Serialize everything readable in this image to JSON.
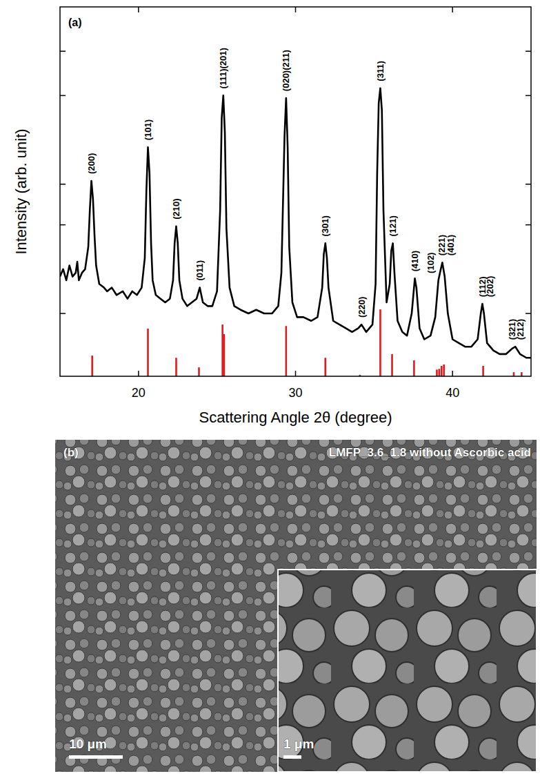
{
  "chart_data": {
    "type": "line",
    "panel_label": "(a)",
    "xlabel": "Scattering Angle 2θ (degree)",
    "ylabel": "Intensity (arb. unit)",
    "xlim": [
      15,
      45
    ],
    "ylim": [
      0,
      100
    ],
    "xticks": [
      20,
      30,
      40
    ],
    "yticks": [
      17,
      41,
      52,
      76,
      88
    ],
    "tick_labels": "x",
    "series": [
      {
        "type": "line",
        "color": "#000000",
        "x": [
          15.0,
          15.2,
          15.4,
          15.6,
          15.8,
          16.0,
          16.1,
          16.2,
          16.4,
          16.6,
          16.8,
          16.9,
          17.0,
          17.1,
          17.2,
          17.3,
          17.5,
          17.8,
          18.0,
          18.3,
          18.6,
          19.0,
          19.3,
          19.6,
          19.9,
          20.2,
          20.4,
          20.5,
          20.6,
          20.7,
          20.8,
          20.9,
          21.1,
          21.4,
          21.7,
          22.0,
          22.2,
          22.3,
          22.4,
          22.5,
          22.6,
          22.8,
          23.1,
          23.4,
          23.7,
          23.9,
          24.1,
          24.4,
          24.7,
          25.0,
          25.2,
          25.3,
          25.4,
          25.5,
          25.6,
          25.8,
          26.1,
          26.5,
          27.0,
          27.5,
          28.0,
          28.5,
          28.9,
          29.1,
          29.3,
          29.4,
          29.5,
          29.6,
          29.8,
          30.1,
          30.5,
          31.0,
          31.4,
          31.7,
          31.8,
          31.9,
          32.0,
          32.1,
          32.4,
          32.8,
          33.2,
          33.6,
          34.0,
          34.2,
          34.5,
          34.9,
          35.1,
          35.2,
          35.3,
          35.4,
          35.5,
          35.6,
          35.8,
          36.0,
          36.1,
          36.2,
          36.3,
          36.5,
          36.8,
          37.1,
          37.4,
          37.6,
          37.7,
          37.9,
          38.2,
          38.6,
          38.9,
          39.1,
          39.2,
          39.35,
          39.5,
          39.7,
          40.0,
          40.4,
          40.8,
          41.2,
          41.6,
          41.8,
          41.9,
          42.0,
          42.2,
          42.6,
          43.0,
          43.4,
          43.8,
          44.0,
          44.3,
          44.7,
          45.0
        ],
        "values": [
          27,
          29,
          26,
          30,
          27,
          28,
          31,
          26,
          28,
          29,
          35,
          45,
          52.9,
          48,
          38,
          30,
          25,
          24,
          23,
          24,
          22,
          23,
          21,
          23,
          22,
          24,
          32,
          50,
          62,
          55,
          36,
          26,
          22,
          21,
          20,
          21,
          26,
          36,
          40.6,
          36,
          26,
          21,
          19,
          20,
          21,
          24,
          20,
          19,
          19,
          23,
          45,
          70,
          76,
          66,
          40,
          24,
          19,
          18,
          17,
          18,
          17,
          17,
          19,
          28,
          65,
          75.3,
          62,
          35,
          20,
          16,
          16,
          15,
          16,
          24,
          33,
          36,
          32,
          24,
          15,
          14,
          13,
          12,
          13,
          14,
          12,
          14,
          25,
          55,
          74,
          78,
          72,
          45,
          20,
          25,
          34,
          36,
          28,
          15,
          12,
          11,
          17,
          26.5,
          24,
          13,
          10,
          11,
          16,
          26,
          28,
          30.8,
          27,
          17,
          10,
          9,
          8,
          8,
          10,
          17,
          19.6,
          17,
          9,
          7,
          6,
          6,
          7.5,
          8,
          6,
          5,
          5
        ]
      },
      {
        "type": "bar",
        "color": "#e31a1c",
        "x": [
          17.05,
          20.6,
          22.4,
          23.85,
          25.35,
          25.45,
          29.4,
          31.9,
          34.1,
          35.4,
          36.15,
          37.55,
          39.0,
          39.15,
          39.3,
          39.45,
          41.95,
          43.9,
          44.4
        ],
        "values": [
          5.6,
          12.9,
          5,
          2.4,
          14,
          11.4,
          13.6,
          5,
          0.4,
          18.1,
          6,
          4.3,
          1.8,
          2,
          2.8,
          3.2,
          2.8,
          1.1,
          1.1
        ]
      }
    ],
    "annotations": [
      {
        "text": "(200)",
        "x": 17.0
      },
      {
        "text": "(101)",
        "x": 20.6
      },
      {
        "text": "(210)",
        "x": 22.4
      },
      {
        "text": "(011)",
        "x": 23.9
      },
      {
        "text": "(111)(201)",
        "x": 25.4
      },
      {
        "text": "(020)(211)",
        "x": 29.4
      },
      {
        "text": "(301)",
        "x": 31.9
      },
      {
        "text": "(220)",
        "x": 34.2
      },
      {
        "text": "(311)",
        "x": 35.4
      },
      {
        "text": "(121)",
        "x": 36.2
      },
      {
        "text": "(410)",
        "x": 37.6
      },
      {
        "text": "(102)",
        "x": 38.6
      },
      {
        "text": "(221)",
        "x": 39.3
      },
      {
        "text": "(401)",
        "x": 39.9
      },
      {
        "text": "(112)",
        "x": 41.9
      },
      {
        "text": "(202)",
        "x": 42.4
      },
      {
        "text": "(321)",
        "x": 43.8
      },
      {
        "text": "(212)",
        "x": 44.3
      }
    ]
  },
  "image_panel": {
    "panel_label": "(b)",
    "title": "LMFP_3.6_1.8 without Ascorbic acid",
    "scale_bar": "10 μm",
    "inset_scale_bar": "1 μm"
  }
}
